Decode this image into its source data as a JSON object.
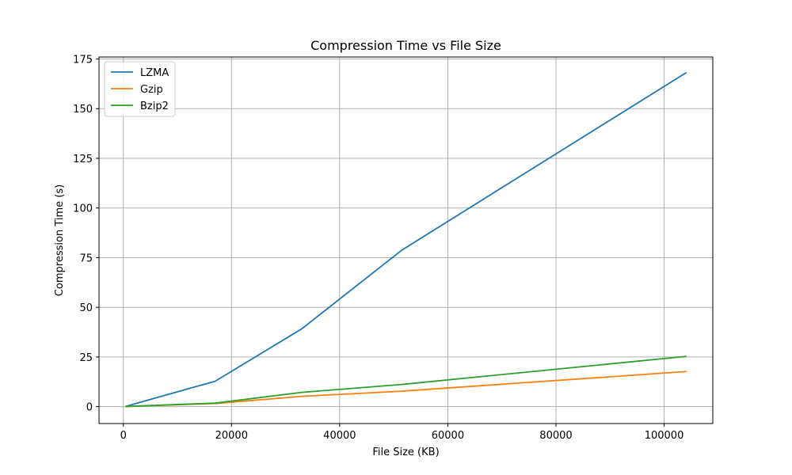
{
  "chart_data": {
    "type": "line",
    "title": "Compression Time vs File Size",
    "xlabel": "File Size (KB)",
    "ylabel": "Compression Time (s)",
    "xlim": [
      -4500,
      109000
    ],
    "ylim": [
      -8.5,
      176
    ],
    "xticks": [
      0,
      20000,
      40000,
      60000,
      80000,
      100000
    ],
    "yticks": [
      0,
      25,
      50,
      75,
      100,
      125,
      150,
      175
    ],
    "grid": true,
    "legend_position": "top-left",
    "series": [
      {
        "name": "LZMA",
        "color": "#1f77b4",
        "x": [
          500,
          17000,
          33000,
          51500,
          104000
        ],
        "y": [
          0.2,
          12.8,
          39.2,
          78.8,
          168
        ]
      },
      {
        "name": "Gzip",
        "color": "#ff7f0e",
        "x": [
          500,
          17000,
          33000,
          51500,
          104000
        ],
        "y": [
          0.1,
          1.6,
          5.2,
          7.8,
          17.7
        ]
      },
      {
        "name": "Bzip2",
        "color": "#2ca02c",
        "x": [
          500,
          17000,
          33000,
          51500,
          104000
        ],
        "y": [
          0.1,
          1.8,
          7.2,
          11.2,
          25.3
        ]
      }
    ]
  }
}
